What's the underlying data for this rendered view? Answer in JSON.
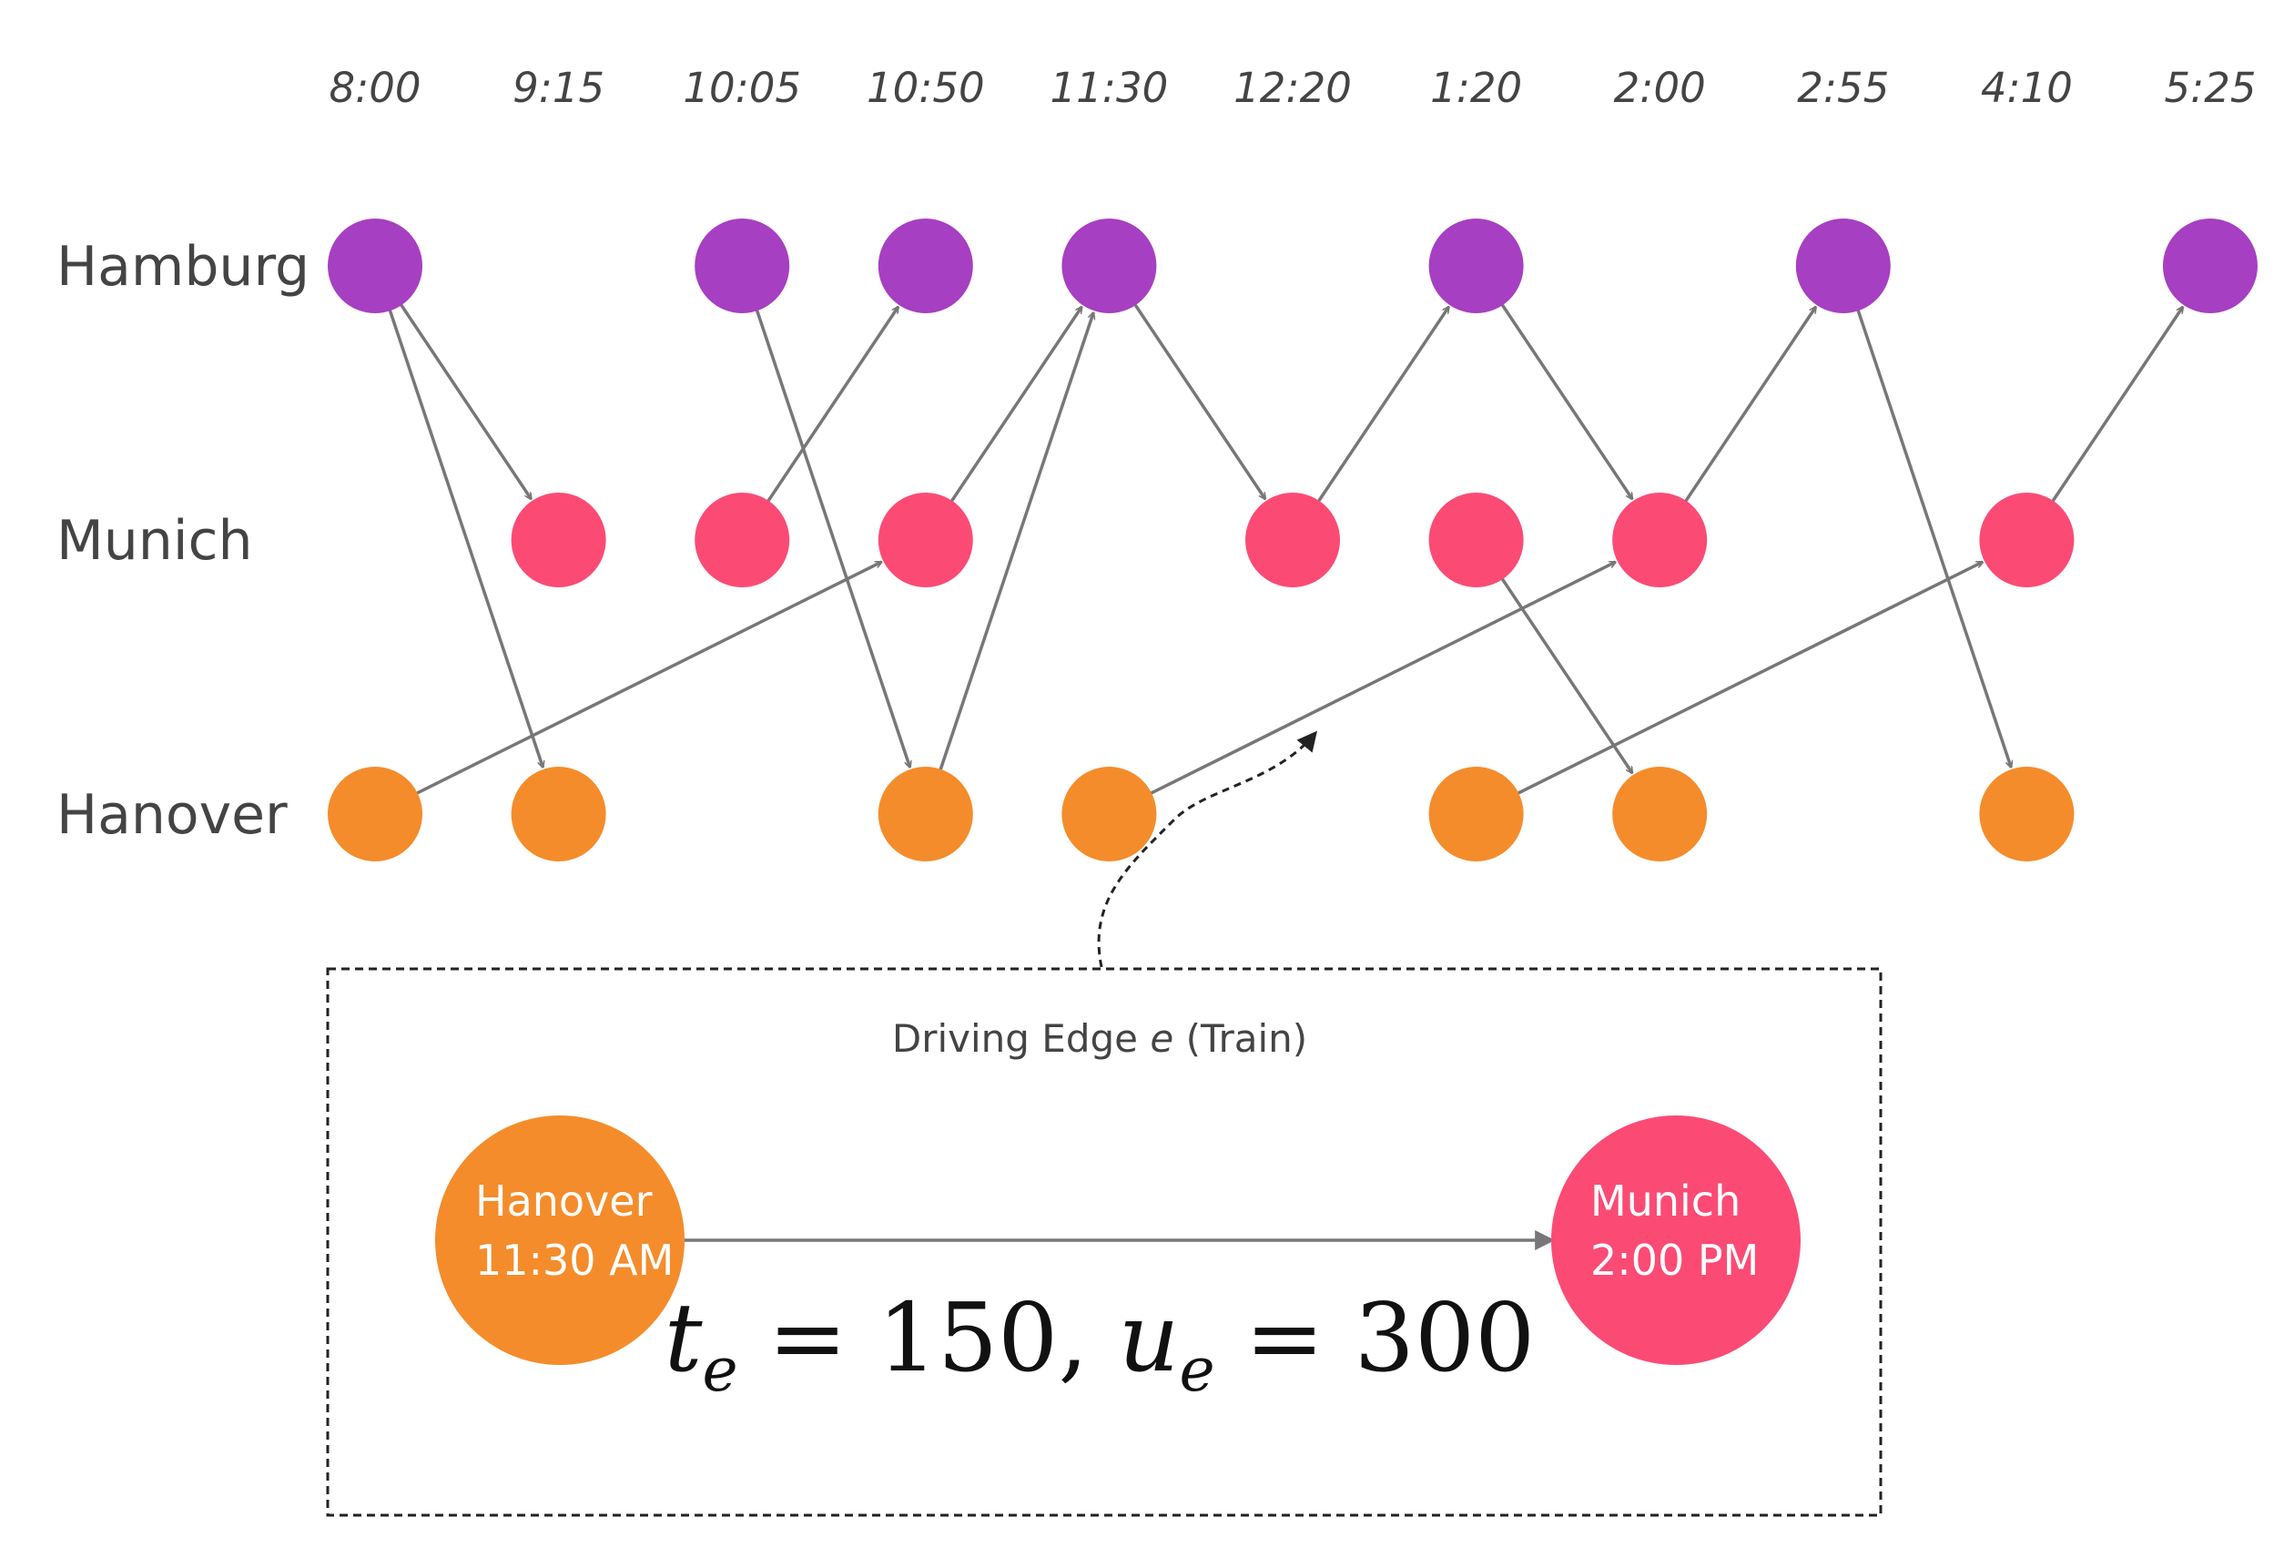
{
  "times": [
    "8:00",
    "9:15",
    "10:05",
    "10:50",
    "11:30",
    "12:20",
    "1:20",
    "2:00",
    "2:55",
    "4:10",
    "5:25"
  ],
  "cities": [
    {
      "name": "Hamburg",
      "color": "#a63fc1",
      "time_indices": [
        0,
        2,
        3,
        4,
        6,
        8,
        10
      ]
    },
    {
      "name": "Munich",
      "color": "#fb4b74",
      "time_indices": [
        1,
        2,
        3,
        5,
        6,
        7,
        9
      ]
    },
    {
      "name": "Hanover",
      "color": "#f48c2b",
      "time_indices": [
        0,
        1,
        3,
        4,
        6,
        7,
        9
      ]
    }
  ],
  "edges": [
    {
      "from": [
        "Hamburg",
        0
      ],
      "to": [
        "Munich",
        1
      ]
    },
    {
      "from": [
        "Hamburg",
        0
      ],
      "to": [
        "Hanover",
        1
      ]
    },
    {
      "from": [
        "Hamburg",
        2
      ],
      "to": [
        "Hanover",
        3
      ]
    },
    {
      "from": [
        "Munich",
        2
      ],
      "to": [
        "Hamburg",
        3
      ]
    },
    {
      "from": [
        "Munich",
        3
      ],
      "to": [
        "Hamburg",
        4
      ]
    },
    {
      "from": [
        "Hanover",
        3
      ],
      "to": [
        "Hamburg",
        4
      ]
    },
    {
      "from": [
        "Hanover",
        0
      ],
      "to": [
        "Munich",
        3
      ]
    },
    {
      "from": [
        "Hamburg",
        4
      ],
      "to": [
        "Munich",
        5
      ]
    },
    {
      "from": [
        "Munich",
        5
      ],
      "to": [
        "Hamburg",
        6
      ]
    },
    {
      "from": [
        "Hamburg",
        6
      ],
      "to": [
        "Munich",
        7
      ]
    },
    {
      "from": [
        "Munich",
        7
      ],
      "to": [
        "Hamburg",
        8
      ]
    },
    {
      "from": [
        "Hanover",
        4
      ],
      "to": [
        "Munich",
        7
      ]
    },
    {
      "from": [
        "Munich",
        6
      ],
      "to": [
        "Hanover",
        7
      ]
    },
    {
      "from": [
        "Hanover",
        6
      ],
      "to": [
        "Munich",
        9
      ]
    },
    {
      "from": [
        "Hamburg",
        8
      ],
      "to": [
        "Hanover",
        9
      ]
    },
    {
      "from": [
        "Munich",
        9
      ],
      "to": [
        "Hamburg",
        10
      ]
    }
  ],
  "inset": {
    "title": "Driving Edge",
    "title_symbol": "e",
    "title_suffix": "(Train)",
    "from_node": {
      "city": "Hanover",
      "time": "11:30 AM",
      "color": "#f48c2b"
    },
    "to_node": {
      "city": "Munich",
      "time": "2:00 PM",
      "color": "#fb4b74"
    },
    "formula": {
      "t_symbol": "t",
      "u_symbol": "u",
      "subscript": "e",
      "t_value": "150",
      "u_value": "300"
    }
  },
  "colors": {
    "edge": "#777777",
    "callout": "#222222",
    "text": "#444444"
  }
}
